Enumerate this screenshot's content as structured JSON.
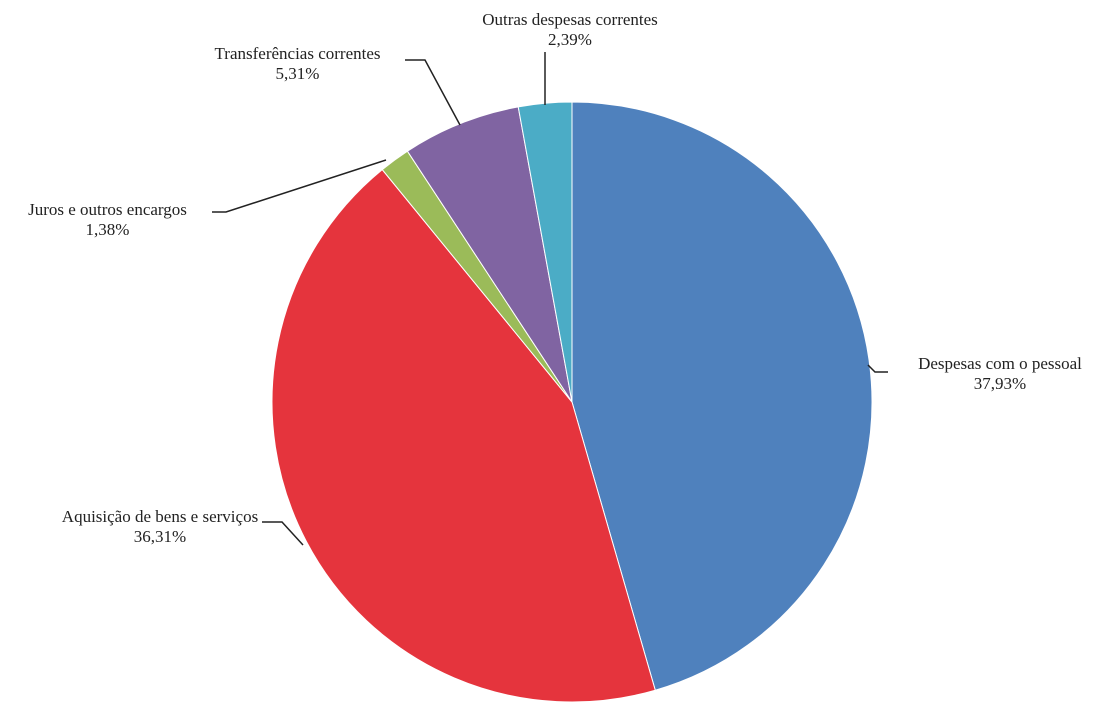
{
  "chart_data": {
    "type": "pie",
    "categories": [
      "Despesas com o pessoal",
      "Aquisição de bens e serviços",
      "Juros e outros encargos",
      "Transferências correntes",
      "Outras despesas correntes"
    ],
    "values": [
      37.93,
      36.31,
      1.38,
      5.31,
      2.39
    ],
    "value_labels": [
      "37,93%",
      "36,31%",
      "1,38%",
      "5,31%",
      "2,39%"
    ],
    "colors": [
      "#4f81bd",
      "#e5343d",
      "#9bbb59",
      "#8064a2",
      "#4bacc6"
    ]
  }
}
